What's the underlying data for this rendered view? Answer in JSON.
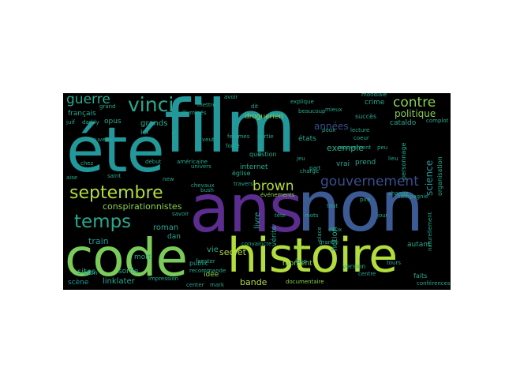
{
  "colors": {
    "background": "#000000",
    "teal": "#23989a",
    "purple": "#5b2d8f",
    "blue": "#3c5a94",
    "green": "#7acb5a",
    "yellowgreen": "#b2dd3d",
    "lightgreen": "#88d04f",
    "cyan": "#28a98e",
    "darkblue": "#3a4e8d",
    "indigo": "#472a7a"
  },
  "words": {
    "film": "film",
    "ete": "été",
    "ans": "ans",
    "non": "non",
    "code": "code",
    "histoire": "histoire",
    "septembre": "septembre",
    "temps": "temps",
    "vinci": "vinci",
    "guerre": "guerre",
    "brown": "brown",
    "gouvernement": "gouvernement",
    "contre": "contre",
    "conspirationnistes": "conspirationnistes",
    "politique": "politique",
    "science": "science",
    "exemple": "exemple",
    "annees": "années",
    "secret": "secret",
    "bande": "bande",
    "livre": "livre",
    "grands": "grands",
    "roman": "roman",
    "train": "train",
    "sites": "sites",
    "linklater": "linklater",
    "scene": "scène",
    "fiction": "fiction",
    "moment": "moment",
    "internet": "internet",
    "etats": "états",
    "francais": "français",
    "opus": "opus",
    "mort": "mort",
    "vie": "vie",
    "sortie": "sortie",
    "autant": "autant",
    "prend": "prend",
    "vrai": "vrai",
    "droguerien": "droguerien",
    "question": "question",
    "version": "version",
    "idee": "idée",
    "ici": "ici",
    "crime": "crime",
    "grande": "grande",
    "dan": "dan",
    "eglise": "église",
    "faits": "faits",
    "conferences": "conférences",
    "documentaire": "documentaire",
    "cataldo": "cataldo",
    "succes": "succès",
    "personnage": "personnage",
    "organisation": "organisation",
    "evenements": "événements",
    "verite": "vérité",
    "tete": "tête",
    "public": "public",
    "bien": "bien",
    "juif": "juif",
    "darkly": "darkly",
    "grand": "grand",
    "saint": "saint",
    "mettre": "mettre",
    "beaucoup": "beaucoup",
    "explique": "explique",
    "mieux": "mieux",
    "partie": "partie",
    "force": "force",
    "femmes": "femmes",
    "veut": "veut",
    "pire": "pire",
    "change": "change",
    "nouveau": "nouveau",
    "debut": "début",
    "chevaux": "chevaux",
    "bush": "bush",
    "travers": "travers",
    "savoir": "savoir",
    "new": "new",
    "univers": "univers",
    "americaine": "américaine",
    "illumines": "illuminés",
    "face": "face",
    "sion": "sion",
    "lecture": "lecture",
    "jour": "jour",
    "centre": "centre",
    "tours": "tours",
    "deux": "deux",
    "recommande": "recommande",
    "fanster": "fanster",
    "center": "center",
    "mark": "mark",
    "poux": "poux",
    "complot": "complot",
    "compagnie": "compagnie",
    "naturellement": "naturellement",
    "mondiale": "mondiale",
    "jeu": "jeu",
    "charge": "charge",
    "mots": "mots",
    "part": "part",
    "place": "place",
    "convaincre": "convaincre",
    "impression": "impression",
    "dit": "dit",
    "sous": "sous",
    "pris": "pris",
    "chez": "chez",
    "aise": "aise",
    "avoir": "avoir",
    "tout": "tout",
    "mouvement": "mouvement",
    "coeur": "coeur",
    "peu": "peu",
    "lieu": "lieu"
  }
}
